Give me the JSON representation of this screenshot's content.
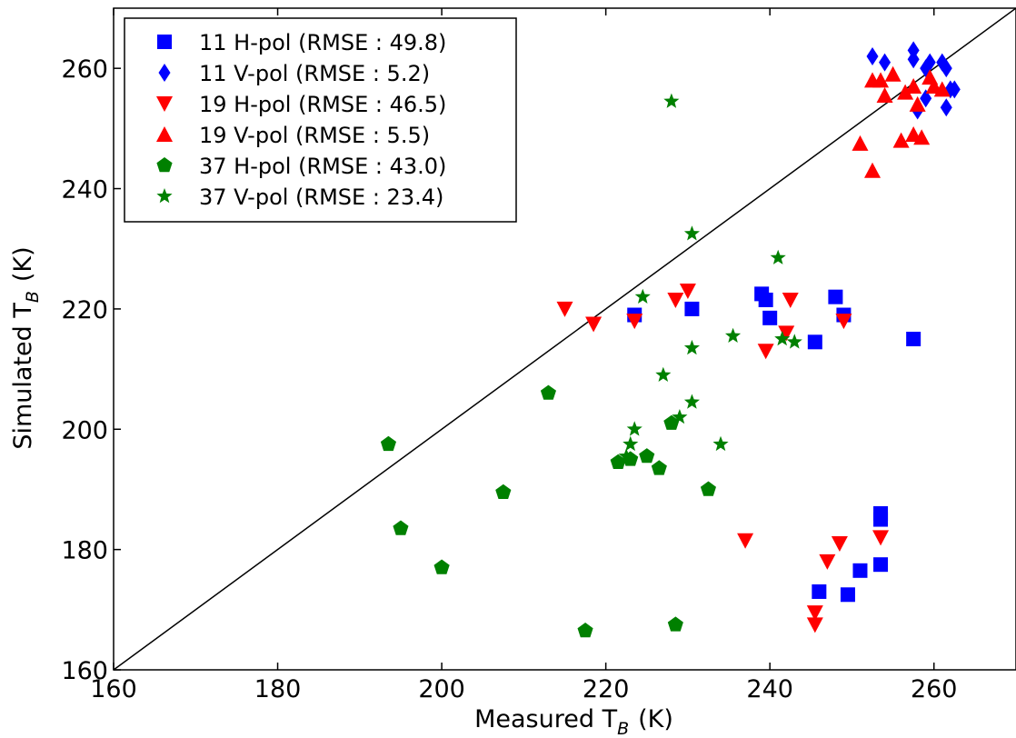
{
  "chart_data": {
    "type": "scatter",
    "title": "",
    "xlabel": "Measured T",
    "xlabel_sub": "B",
    "xlabel_unit": "(K)",
    "ylabel": "Simulated T",
    "ylabel_sub": "B",
    "ylabel_unit": "(K)",
    "xlim": [
      160,
      270
    ],
    "ylim": [
      160,
      270
    ],
    "xticks": [
      "160",
      "180",
      "200",
      "220",
      "240",
      "260"
    ],
    "yticks": [
      "160",
      "180",
      "200",
      "220",
      "240",
      "260"
    ],
    "grid": false,
    "legend_position": "top-left",
    "reference_line": "y = x",
    "series": [
      {
        "name": "11 H-pol (RMSE : 49.8)",
        "marker": "square",
        "color": "#0000ff",
        "points": [
          [
            223.5,
            219
          ],
          [
            230.5,
            220
          ],
          [
            239,
            222.5
          ],
          [
            240,
            218.5
          ],
          [
            239.5,
            221.5
          ],
          [
            245.5,
            214.5
          ],
          [
            248,
            222
          ],
          [
            249,
            219
          ],
          [
            257.5,
            215
          ],
          [
            246,
            173
          ],
          [
            249.5,
            172.5
          ],
          [
            251,
            176.5
          ],
          [
            253.5,
            177.5
          ],
          [
            253.5,
            185
          ],
          [
            253.5,
            186
          ]
        ]
      },
      {
        "name": "11 V-pol (RMSE : 5.2)",
        "marker": "diamond",
        "color": "#0000ff",
        "points": [
          [
            252.5,
            262
          ],
          [
            254,
            261
          ],
          [
            257.5,
            263
          ],
          [
            257.5,
            261.5
          ],
          [
            259,
            260
          ],
          [
            259.5,
            261
          ],
          [
            261,
            261
          ],
          [
            261.5,
            260
          ],
          [
            262,
            256.5
          ],
          [
            262.5,
            256.5
          ],
          [
            259,
            255
          ],
          [
            258,
            253
          ],
          [
            261.5,
            253.5
          ]
        ]
      },
      {
        "name": "19 H-pol (RMSE : 46.5)",
        "marker": "triangle-down",
        "color": "#ff0000",
        "points": [
          [
            215,
            220
          ],
          [
            218.5,
            217.5
          ],
          [
            223.5,
            218
          ],
          [
            228.5,
            221.5
          ],
          [
            230,
            223
          ],
          [
            239.5,
            213
          ],
          [
            242,
            216
          ],
          [
            242.5,
            221.5
          ],
          [
            249,
            218
          ],
          [
            237,
            181.5
          ],
          [
            247,
            178
          ],
          [
            248.5,
            181
          ],
          [
            253.5,
            182
          ],
          [
            245.5,
            167.5
          ],
          [
            245.5,
            169.5
          ]
        ]
      },
      {
        "name": "19 V-pol (RMSE : 5.5)",
        "marker": "triangle-up",
        "color": "#ff0000",
        "points": [
          [
            252.5,
            258
          ],
          [
            253.5,
            258
          ],
          [
            255,
            259
          ],
          [
            254,
            255.5
          ],
          [
            256.5,
            256
          ],
          [
            257.5,
            257
          ],
          [
            258,
            254
          ],
          [
            259.5,
            258.5
          ],
          [
            260,
            257
          ],
          [
            261,
            256.5
          ],
          [
            251,
            247.5
          ],
          [
            252.5,
            243
          ],
          [
            256,
            248
          ],
          [
            257.5,
            249
          ],
          [
            258.5,
            248.5
          ]
        ]
      },
      {
        "name": "37 H-pol (RMSE : 43.0)",
        "marker": "pentagon",
        "color": "#008000",
        "points": [
          [
            193.5,
            197.5
          ],
          [
            195,
            183.5
          ],
          [
            200,
            177
          ],
          [
            207.5,
            189.5
          ],
          [
            213,
            206
          ],
          [
            217.5,
            166.5
          ],
          [
            221.5,
            194.5
          ],
          [
            223,
            195
          ],
          [
            225,
            195.5
          ],
          [
            226.5,
            193.5
          ],
          [
            228,
            201
          ],
          [
            228.5,
            167.5
          ],
          [
            232.5,
            190
          ]
        ]
      },
      {
        "name": "37 V-pol (RMSE : 23.4)",
        "marker": "star",
        "color": "#008000",
        "points": [
          [
            228,
            254.5
          ],
          [
            230.5,
            232.5
          ],
          [
            224.5,
            222
          ],
          [
            241,
            228.5
          ],
          [
            227,
            209
          ],
          [
            230.5,
            213.5
          ],
          [
            235.5,
            215.5
          ],
          [
            241.5,
            215
          ],
          [
            243,
            214.5
          ],
          [
            223.5,
            200
          ],
          [
            223,
            197.5
          ],
          [
            222.5,
            195.5
          ],
          [
            229,
            202
          ],
          [
            230.5,
            204.5
          ],
          [
            234,
            197.5
          ]
        ]
      }
    ]
  }
}
